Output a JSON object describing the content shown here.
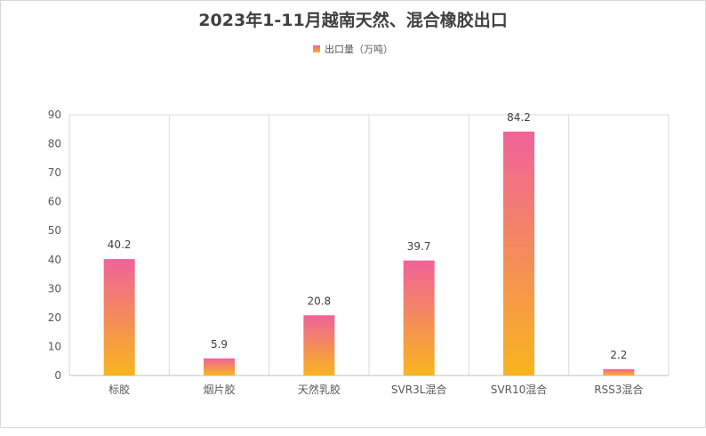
{
  "chart_data": {
    "type": "bar",
    "title": "2023年1-11月越南天然、混合橡胶出口",
    "legend": "出口量（万吨）",
    "legend_position": "top",
    "categories": [
      "标胶",
      "烟片胶",
      "天然乳胶",
      "SVR3L混合",
      "SVR10混合",
      "RSS3混合"
    ],
    "series": [
      {
        "name": "出口量（万吨）",
        "values": [
          40.2,
          5.9,
          20.8,
          39.7,
          84.2,
          2.2
        ]
      }
    ],
    "data_labels": [
      "40.2",
      "5.9",
      "20.8",
      "39.7",
      "84.2",
      "2.2"
    ],
    "ylim": [
      0,
      90
    ],
    "yticks": [
      0,
      10,
      20,
      30,
      40,
      50,
      60,
      70,
      80,
      90
    ],
    "grid": "vertical category dividers",
    "bar_gradient": {
      "top": "#f0629a",
      "bottom": "#f8b51e"
    }
  }
}
